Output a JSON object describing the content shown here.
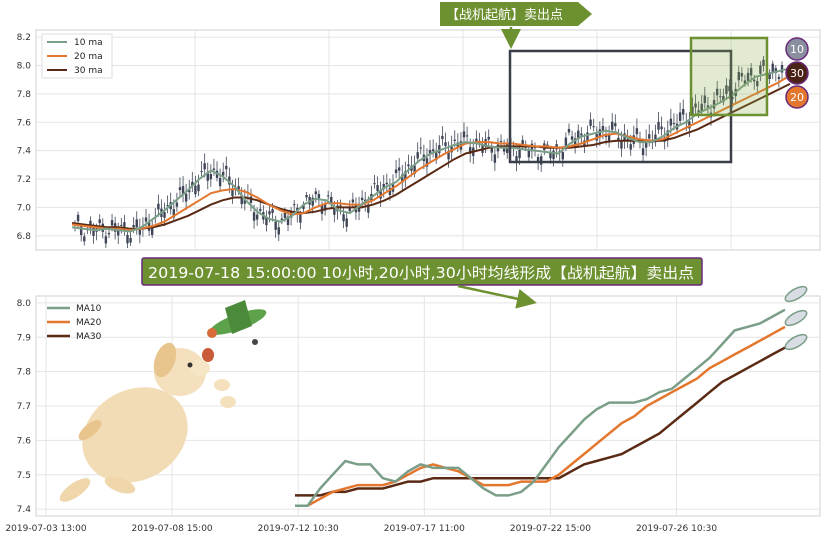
{
  "chart_data": [
    {
      "type": "candlestick",
      "ylim": [
        6.7,
        8.25
      ],
      "yticks": [
        "6.8",
        "7.0",
        "7.2",
        "7.4",
        "7.6",
        "7.8",
        "8.0",
        "8.2"
      ],
      "legend": [
        "10 ma",
        "20 ma",
        "30 ma"
      ],
      "legend_position": "top-left",
      "grid": true,
      "callout": "【战机起航】卖出点",
      "ma_badges": [
        "10",
        "30",
        "20"
      ],
      "colors": {
        "ma10": "#7a9e87",
        "ma20": "#e3772e",
        "ma30": "#5a2a14",
        "candle": "#3d4556",
        "callout": "#6d9030",
        "badge20": "#e3772e",
        "badge30": "#4a2316",
        "badge10": "#8a8fa0"
      },
      "ma10": [
        6.86,
        6.85,
        6.84,
        6.85,
        6.84,
        6.83,
        6.86,
        6.92,
        6.98,
        7.05,
        7.12,
        7.2,
        7.26,
        7.22,
        7.15,
        7.05,
        6.97,
        6.92,
        6.9,
        6.94,
        7.02,
        7.06,
        7.05,
        6.98,
        6.96,
        7.02,
        7.08,
        7.14,
        7.18,
        7.26,
        7.33,
        7.38,
        7.41,
        7.44,
        7.46,
        7.45,
        7.43,
        7.42,
        7.42,
        7.41,
        7.4,
        7.39,
        7.38,
        7.45,
        7.5,
        7.52,
        7.54,
        7.53,
        7.49,
        7.46,
        7.46,
        7.5,
        7.56,
        7.6,
        7.66,
        7.7,
        7.74,
        7.79,
        7.86,
        7.92,
        7.94,
        7.96,
        7.98
      ],
      "ma20": [
        6.88,
        6.87,
        6.86,
        6.85,
        6.85,
        6.84,
        6.85,
        6.87,
        6.9,
        6.95,
        7.0,
        7.05,
        7.1,
        7.12,
        7.13,
        7.11,
        7.07,
        7.02,
        6.98,
        6.95,
        6.96,
        7.0,
        7.03,
        7.03,
        7.02,
        7.02,
        7.05,
        7.1,
        7.15,
        7.21,
        7.27,
        7.32,
        7.37,
        7.41,
        7.45,
        7.46,
        7.46,
        7.45,
        7.45,
        7.44,
        7.43,
        7.43,
        7.42,
        7.43,
        7.45,
        7.48,
        7.51,
        7.52,
        7.5,
        7.48,
        7.47,
        7.48,
        7.52,
        7.56,
        7.6,
        7.64,
        7.68,
        7.72,
        7.76,
        7.8,
        7.84,
        7.88,
        7.93
      ],
      "ma30": [
        6.89,
        6.88,
        6.87,
        6.86,
        6.86,
        6.85,
        6.85,
        6.86,
        6.88,
        6.91,
        6.94,
        6.98,
        7.02,
        7.05,
        7.07,
        7.07,
        7.05,
        7.02,
        6.99,
        6.97,
        6.96,
        6.97,
        6.99,
        7.0,
        7.0,
        7.0,
        7.02,
        7.05,
        7.09,
        7.14,
        7.19,
        7.24,
        7.29,
        7.34,
        7.38,
        7.4,
        7.42,
        7.43,
        7.43,
        7.43,
        7.43,
        7.42,
        7.42,
        7.42,
        7.43,
        7.44,
        7.46,
        7.47,
        7.47,
        7.47,
        7.47,
        7.47,
        7.49,
        7.52,
        7.55,
        7.59,
        7.63,
        7.67,
        7.71,
        7.75,
        7.79,
        7.83,
        7.87
      ]
    },
    {
      "type": "line",
      "title": "2019-07-18 15:00:00 10小时,20小时,30小时均线形成【战机起航】卖出点",
      "ylim": [
        7.38,
        8.02
      ],
      "yticks": [
        "7.4",
        "7.5",
        "7.6",
        "7.7",
        "7.8",
        "7.9",
        "8.0"
      ],
      "xticks": [
        "2019-07-03 13:00",
        "2019-07-08 15:00",
        "2019-07-12 10:30",
        "2019-07-17 11:00",
        "2019-07-22 15:00",
        "2019-07-26 10:30"
      ],
      "legend_position": "top-left",
      "grid": true,
      "series": [
        {
          "name": "MA10",
          "color": "#7a9e87",
          "values": [
            7.41,
            7.41,
            7.46,
            7.5,
            7.54,
            7.53,
            7.53,
            7.49,
            7.48,
            7.51,
            7.53,
            7.52,
            7.52,
            7.52,
            7.49,
            7.46,
            7.44,
            7.44,
            7.45,
            7.48,
            7.53,
            7.58,
            7.62,
            7.66,
            7.69,
            7.71,
            7.71,
            7.71,
            7.72,
            7.74,
            7.75,
            7.78,
            7.81,
            7.84,
            7.88,
            7.92,
            7.93,
            7.94,
            7.96,
            7.98
          ]
        },
        {
          "name": "MA20",
          "color": "#e3772e",
          "values": [
            7.41,
            7.41,
            7.43,
            7.45,
            7.46,
            7.47,
            7.47,
            7.47,
            7.48,
            7.5,
            7.52,
            7.53,
            7.52,
            7.51,
            7.49,
            7.47,
            7.47,
            7.47,
            7.48,
            7.48,
            7.48,
            7.5,
            7.53,
            7.56,
            7.59,
            7.62,
            7.65,
            7.67,
            7.7,
            7.72,
            7.74,
            7.76,
            7.78,
            7.81,
            7.83,
            7.85,
            7.87,
            7.89,
            7.91,
            7.93
          ]
        },
        {
          "name": "MA30",
          "color": "#5a2a14",
          "values": [
            7.44,
            7.44,
            7.44,
            7.45,
            7.45,
            7.46,
            7.46,
            7.46,
            7.47,
            7.48,
            7.48,
            7.49,
            7.49,
            7.49,
            7.49,
            7.49,
            7.49,
            7.49,
            7.49,
            7.49,
            7.49,
            7.49,
            7.51,
            7.53,
            7.54,
            7.55,
            7.56,
            7.58,
            7.6,
            7.62,
            7.65,
            7.68,
            7.71,
            7.74,
            7.77,
            7.79,
            7.81,
            7.83,
            7.85,
            7.87
          ]
        }
      ]
    }
  ]
}
